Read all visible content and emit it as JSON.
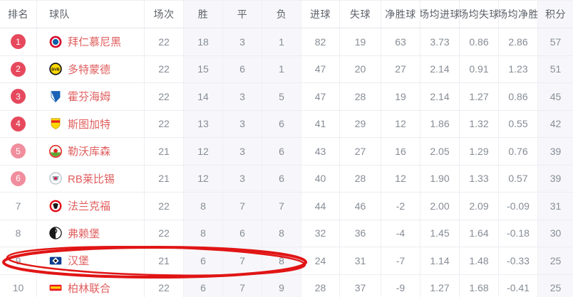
{
  "colors": {
    "team_name": "#e05e5e",
    "rank_badge_red": "#e6495d",
    "rank_badge_pink": "#f08e9d",
    "rank_plain_text": "#8b9099",
    "header_text": "#5c6269",
    "cell_text": "#868c95",
    "shaded_column_bg": "#f7f7fb",
    "row_border": "#ecedf2",
    "annotation_red": "#e11515"
  },
  "table": {
    "columns": [
      {
        "key": "rank",
        "label": "排名"
      },
      {
        "key": "team",
        "label": "球队"
      },
      {
        "key": "played",
        "label": "场次"
      },
      {
        "key": "win",
        "label": "胜"
      },
      {
        "key": "draw",
        "label": "平"
      },
      {
        "key": "loss",
        "label": "负"
      },
      {
        "key": "gf",
        "label": "进球"
      },
      {
        "key": "ga",
        "label": "失球"
      },
      {
        "key": "gd",
        "label": "净胜球"
      },
      {
        "key": "avg_gf",
        "label": "场均进球"
      },
      {
        "key": "avg_ga",
        "label": "场均失球"
      },
      {
        "key": "avg_gd",
        "label": "场均净胜"
      },
      {
        "key": "points",
        "label": "积分"
      }
    ],
    "shaded_column_keys": [
      "win",
      "draw",
      "loss",
      "points"
    ],
    "rows": [
      {
        "rank": "1",
        "badge": "red",
        "team": "拜仁慕尼黑",
        "logo": "bayern",
        "logo_icon": "bayern-munich-crest-icon",
        "played": "22",
        "win": "18",
        "draw": "3",
        "loss": "1",
        "gf": "82",
        "ga": "19",
        "gd": "63",
        "avg_gf": "3.73",
        "avg_ga": "0.86",
        "avg_gd": "2.86",
        "points": "57",
        "highlighted": false
      },
      {
        "rank": "2",
        "badge": "red",
        "team": "多特蒙德",
        "logo": "dortmund",
        "logo_icon": "dortmund-crest-icon",
        "played": "22",
        "win": "15",
        "draw": "6",
        "loss": "1",
        "gf": "47",
        "ga": "20",
        "gd": "27",
        "avg_gf": "2.14",
        "avg_ga": "0.91",
        "avg_gd": "1.23",
        "points": "51",
        "highlighted": false
      },
      {
        "rank": "3",
        "badge": "red",
        "team": "霍芬海姆",
        "logo": "hoffenheim",
        "logo_icon": "hoffenheim-crest-icon",
        "played": "22",
        "win": "14",
        "draw": "3",
        "loss": "5",
        "gf": "47",
        "ga": "28",
        "gd": "19",
        "avg_gf": "2.14",
        "avg_ga": "1.27",
        "avg_gd": "0.86",
        "points": "45",
        "highlighted": false
      },
      {
        "rank": "4",
        "badge": "red",
        "team": "斯图加特",
        "logo": "stuttgart",
        "logo_icon": "stuttgart-crest-icon",
        "played": "22",
        "win": "13",
        "draw": "3",
        "loss": "6",
        "gf": "41",
        "ga": "29",
        "gd": "12",
        "avg_gf": "1.86",
        "avg_ga": "1.32",
        "avg_gd": "0.55",
        "points": "42",
        "highlighted": false
      },
      {
        "rank": "5",
        "badge": "pink",
        "team": "勒沃库森",
        "logo": "leverkusen",
        "logo_icon": "leverkusen-crest-icon",
        "played": "21",
        "win": "12",
        "draw": "3",
        "loss": "6",
        "gf": "43",
        "ga": "27",
        "gd": "16",
        "avg_gf": "2.05",
        "avg_ga": "1.29",
        "avg_gd": "0.76",
        "points": "39",
        "highlighted": false
      },
      {
        "rank": "6",
        "badge": "pink",
        "team": "RB莱比锡",
        "logo": "leipzig",
        "logo_icon": "rb-leipzig-crest-icon",
        "played": "21",
        "win": "12",
        "draw": "3",
        "loss": "6",
        "gf": "40",
        "ga": "28",
        "gd": "12",
        "avg_gf": "1.90",
        "avg_ga": "1.33",
        "avg_gd": "0.57",
        "points": "39",
        "highlighted": false
      },
      {
        "rank": "7",
        "badge": "plain",
        "team": "法兰克福",
        "logo": "frankfurt",
        "logo_icon": "frankfurt-crest-icon",
        "played": "22",
        "win": "8",
        "draw": "7",
        "loss": "7",
        "gf": "44",
        "ga": "46",
        "gd": "-2",
        "avg_gf": "2.00",
        "avg_ga": "2.09",
        "avg_gd": "-0.09",
        "points": "31",
        "highlighted": false
      },
      {
        "rank": "8",
        "badge": "plain",
        "team": "弗赖堡",
        "logo": "freiburg",
        "logo_icon": "freiburg-crest-icon",
        "played": "22",
        "win": "8",
        "draw": "6",
        "loss": "8",
        "gf": "32",
        "ga": "36",
        "gd": "-4",
        "avg_gf": "1.45",
        "avg_ga": "1.64",
        "avg_gd": "-0.18",
        "points": "30",
        "highlighted": false
      },
      {
        "rank": "9",
        "badge": "plain",
        "team": "汉堡",
        "logo": "hamburg",
        "logo_icon": "hamburg-crest-icon",
        "played": "21",
        "win": "6",
        "draw": "7",
        "loss": "8",
        "gf": "24",
        "ga": "31",
        "gd": "-7",
        "avg_gf": "1.14",
        "avg_ga": "1.48",
        "avg_gd": "-0.33",
        "points": "25",
        "highlighted": true
      },
      {
        "rank": "10",
        "badge": "plain",
        "team": "柏林联合",
        "logo": "union",
        "logo_icon": "union-berlin-crest-icon",
        "played": "22",
        "win": "6",
        "draw": "7",
        "loss": "9",
        "gf": "28",
        "ga": "37",
        "gd": "-9",
        "avg_gf": "1.27",
        "avg_ga": "1.68",
        "avg_gd": "-0.41",
        "points": "25",
        "highlighted": true
      }
    ]
  },
  "annotation": {
    "shape": "hand-drawn-ellipse",
    "target_team": "汉堡",
    "color": "#e11515"
  }
}
